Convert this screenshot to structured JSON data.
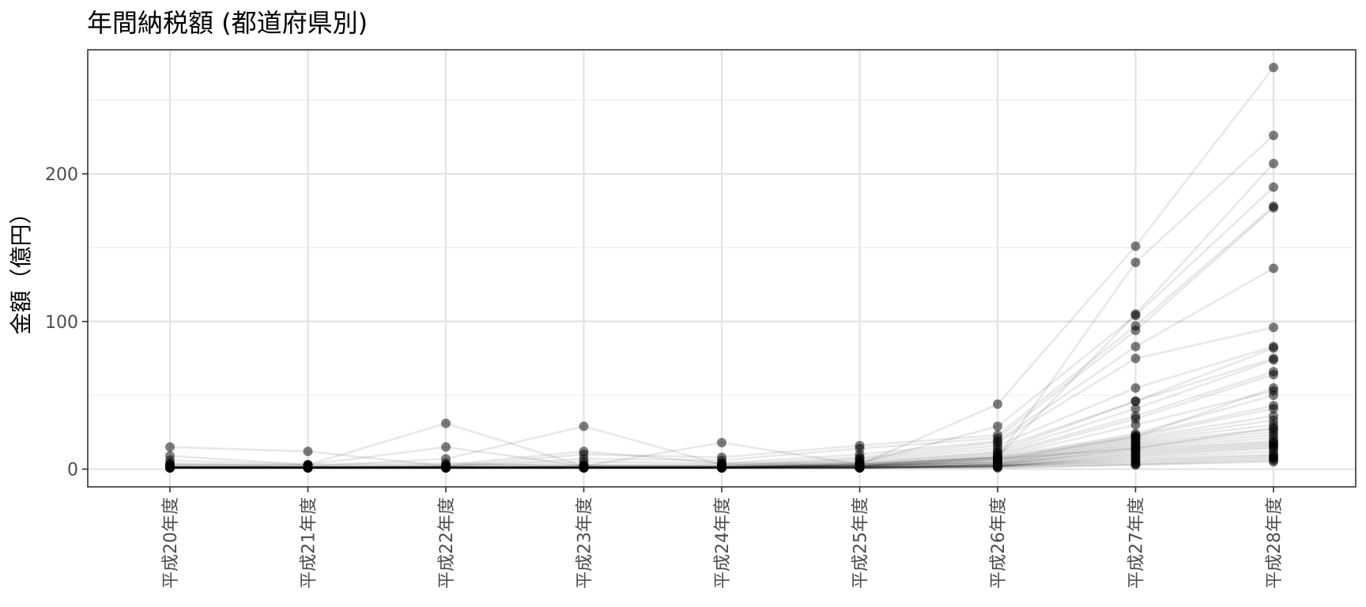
{
  "chart_data": {
    "type": "line",
    "title": "年間納税額 (都道府県別)",
    "xlabel": "",
    "ylabel": "金額（億円）",
    "categories": [
      "平成20年度",
      "平成21年度",
      "平成22年度",
      "平成23年度",
      "平成24年度",
      "平成25年度",
      "平成26年度",
      "平成27年度",
      "平成28年度"
    ],
    "y_ticks": [
      0,
      100,
      200
    ],
    "ylim": [
      -12,
      284
    ],
    "grid": true,
    "legend": "none",
    "series": [
      {
        "values": [
          15,
          12,
          2,
          2,
          2,
          2,
          7,
          22,
          55
        ]
      },
      {
        "values": [
          9,
          3,
          31,
          2,
          2,
          2,
          7,
          14,
          28
        ]
      },
      {
        "values": [
          6,
          3,
          15,
          2,
          2,
          3,
          44,
          151,
          272
        ]
      },
      {
        "values": [
          4,
          2,
          7,
          29,
          3,
          3,
          8,
          140,
          226
        ]
      },
      {
        "values": [
          3,
          3,
          4,
          2,
          18,
          3,
          8,
          105,
          207
        ]
      },
      {
        "values": [
          3,
          2,
          3,
          12,
          4,
          4,
          29,
          104,
          191
        ]
      },
      {
        "values": [
          2,
          2,
          2,
          10,
          8,
          16,
          23,
          97,
          178
        ]
      },
      {
        "values": [
          2,
          1,
          2,
          7,
          6,
          14,
          21,
          94,
          177
        ]
      },
      {
        "values": [
          2,
          1,
          2,
          5,
          4,
          10,
          19,
          83,
          136
        ]
      },
      {
        "values": [
          1,
          1,
          2,
          3,
          3,
          8,
          18,
          75,
          96
        ]
      },
      {
        "values": [
          1,
          1,
          1,
          2,
          2,
          7,
          16,
          55,
          83
        ]
      },
      {
        "values": [
          1,
          1,
          1,
          2,
          2,
          6,
          14,
          46,
          82
        ]
      },
      {
        "values": [
          1,
          1,
          1,
          1,
          1,
          5,
          12,
          46,
          75
        ]
      },
      {
        "values": [
          1,
          1,
          1,
          1,
          1,
          4,
          11,
          41,
          74
        ]
      },
      {
        "values": [
          1,
          1,
          1,
          1,
          1,
          4,
          10,
          36,
          66
        ]
      },
      {
        "values": [
          1,
          1,
          1,
          1,
          1,
          3,
          9,
          34,
          64
        ]
      },
      {
        "values": [
          1,
          1,
          1,
          1,
          1,
          3,
          8,
          30,
          53
        ]
      },
      {
        "values": [
          1,
          1,
          1,
          1,
          1,
          3,
          8,
          24,
          50
        ]
      },
      {
        "values": [
          1,
          1,
          1,
          1,
          1,
          2,
          7,
          23,
          43
        ]
      },
      {
        "values": [
          1,
          1,
          1,
          1,
          1,
          2,
          6,
          22,
          41
        ]
      },
      {
        "values": [
          1,
          1,
          1,
          1,
          1,
          2,
          6,
          21,
          36
        ]
      },
      {
        "values": [
          1,
          1,
          1,
          1,
          1,
          2,
          5,
          20,
          33
        ]
      },
      {
        "values": [
          1,
          1,
          1,
          1,
          1,
          2,
          5,
          19,
          30
        ]
      },
      {
        "values": [
          1,
          1,
          1,
          1,
          1,
          2,
          4,
          18,
          27
        ]
      },
      {
        "values": [
          1,
          1,
          1,
          1,
          1,
          2,
          4,
          17,
          25
        ]
      },
      {
        "values": [
          1,
          1,
          1,
          1,
          1,
          2,
          4,
          16,
          23
        ]
      },
      {
        "values": [
          1,
          1,
          1,
          1,
          1,
          1,
          3,
          15,
          21
        ]
      },
      {
        "values": [
          1,
          1,
          1,
          1,
          1,
          1,
          3,
          14,
          19
        ]
      },
      {
        "values": [
          1,
          1,
          1,
          1,
          1,
          1,
          3,
          13,
          18
        ]
      },
      {
        "values": [
          1,
          1,
          1,
          1,
          1,
          1,
          3,
          12,
          17
        ]
      },
      {
        "values": [
          1,
          1,
          1,
          1,
          1,
          1,
          2,
          11,
          16
        ]
      },
      {
        "values": [
          1,
          1,
          1,
          1,
          1,
          1,
          2,
          10,
          15
        ]
      },
      {
        "values": [
          1,
          1,
          1,
          1,
          1,
          1,
          2,
          9,
          14
        ]
      },
      {
        "values": [
          1,
          1,
          1,
          1,
          1,
          1,
          2,
          8,
          12
        ]
      },
      {
        "values": [
          1,
          1,
          1,
          1,
          1,
          1,
          2,
          7,
          10
        ]
      },
      {
        "values": [
          1,
          1,
          1,
          1,
          1,
          1,
          2,
          6,
          9
        ]
      },
      {
        "values": [
          1,
          1,
          1,
          1,
          1,
          1,
          2,
          5,
          8
        ]
      },
      {
        "values": [
          1,
          1,
          1,
          1,
          1,
          1,
          2,
          4,
          7
        ]
      },
      {
        "values": [
          1,
          1,
          1,
          1,
          1,
          1,
          1,
          3,
          6
        ]
      },
      {
        "values": [
          1,
          1,
          1,
          1,
          1,
          1,
          1,
          3,
          5
        ]
      }
    ]
  }
}
